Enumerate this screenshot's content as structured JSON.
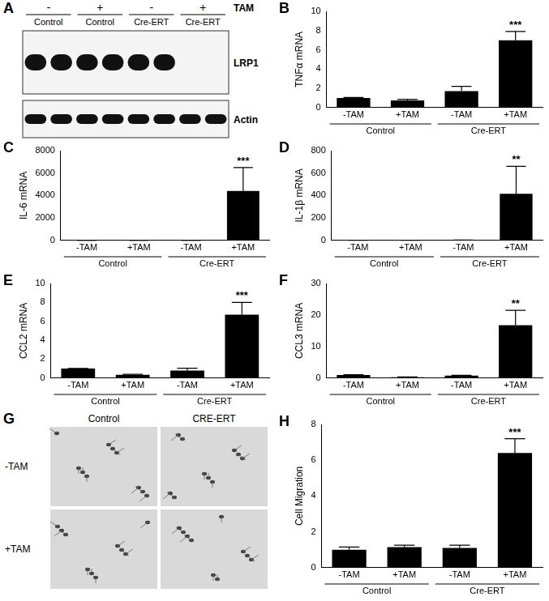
{
  "chart_data": [
    {
      "panel": "B",
      "type": "bar",
      "y_label": "TNFα mRNA",
      "categories": [
        "-TAM",
        "+TAM",
        "-TAM",
        "+TAM"
      ],
      "groups": [
        "Control",
        "Cre-ERT"
      ],
      "values": [
        1.0,
        0.75,
        1.7,
        7.0
      ],
      "errors": [
        0.05,
        0.1,
        0.5,
        0.9
      ],
      "significance": [
        null,
        null,
        null,
        "***"
      ],
      "color": "#000000",
      "ylim": [
        0,
        10
      ],
      "yticks": [
        0,
        2,
        4,
        6,
        8,
        10
      ],
      "grid": false
    },
    {
      "panel": "C",
      "type": "bar",
      "y_label": "IL-6 mRNA",
      "categories": [
        "-TAM",
        "+TAM",
        "-TAM",
        "+TAM"
      ],
      "groups": [
        "Control",
        "Cre-ERT"
      ],
      "values": [
        1,
        1,
        1,
        4400
      ],
      "errors": [
        0,
        0,
        0,
        2100
      ],
      "significance": [
        null,
        null,
        null,
        "***"
      ],
      "color": "#000000",
      "ylim": [
        0,
        8000
      ],
      "yticks": [
        0,
        2000,
        4000,
        6000,
        8000
      ],
      "grid": false
    },
    {
      "panel": "D",
      "type": "bar",
      "y_label": "IL-1β mRNA",
      "categories": [
        "-TAM",
        "+TAM",
        "-TAM",
        "+TAM"
      ],
      "groups": [
        "Control",
        "Cre-ERT"
      ],
      "values": [
        1,
        1,
        2,
        415
      ],
      "errors": [
        0,
        0,
        1,
        245
      ],
      "significance": [
        null,
        null,
        null,
        "**"
      ],
      "color": "#000000",
      "ylim": [
        0,
        800
      ],
      "yticks": [
        0,
        200,
        400,
        600,
        800
      ],
      "grid": false
    },
    {
      "panel": "E",
      "type": "bar",
      "y_label": "CCL2 mRNA",
      "categories": [
        "-TAM",
        "+TAM",
        "-TAM",
        "+TAM"
      ],
      "groups": [
        "Control",
        "Cre-ERT"
      ],
      "values": [
        1.0,
        0.35,
        0.8,
        6.7
      ],
      "errors": [
        0.02,
        0.05,
        0.25,
        1.3
      ],
      "significance": [
        null,
        null,
        null,
        "***"
      ],
      "color": "#000000",
      "ylim": [
        0,
        10
      ],
      "yticks": [
        0,
        2,
        4,
        6,
        8,
        10
      ],
      "grid": false
    },
    {
      "panel": "F",
      "type": "bar",
      "y_label": "CCL3 mRNA",
      "categories": [
        "-TAM",
        "+TAM",
        "-TAM",
        "+TAM"
      ],
      "groups": [
        "Control",
        "Cre-ERT"
      ],
      "values": [
        1.0,
        0.3,
        0.8,
        16.8
      ],
      "errors": [
        0.05,
        0.05,
        0.1,
        4.7
      ],
      "significance": [
        null,
        null,
        null,
        "**"
      ],
      "color": "#000000",
      "ylim": [
        0,
        30
      ],
      "yticks": [
        0,
        10,
        20,
        30
      ],
      "grid": false
    },
    {
      "panel": "H",
      "type": "bar",
      "y_label": "Cell Migration",
      "categories": [
        "-TAM",
        "+TAM",
        "-TAM",
        "+TAM"
      ],
      "groups": [
        "Control",
        "Cre-ERT"
      ],
      "values": [
        1.0,
        1.15,
        1.1,
        6.4
      ],
      "errors": [
        0.15,
        0.1,
        0.15,
        0.8
      ],
      "significance": [
        null,
        null,
        null,
        "***"
      ],
      "color": "#000000",
      "ylim": [
        0,
        8
      ],
      "yticks": [
        0,
        2,
        4,
        6,
        8
      ],
      "grid": false
    }
  ],
  "blot": {
    "panel": "A",
    "treatment": "TAM",
    "groups": [
      {
        "sign": "-",
        "label": "Control"
      },
      {
        "sign": "+",
        "label": "Control"
      },
      {
        "sign": "-",
        "label": "Cre-ERT"
      },
      {
        "sign": "+",
        "label": "Cre-ERT"
      }
    ],
    "bands": [
      {
        "name": "LRP1",
        "present": [
          [
            true,
            true
          ],
          [
            true,
            true
          ],
          [
            true,
            true
          ],
          [
            false,
            false
          ]
        ]
      },
      {
        "name": "Actin",
        "present": [
          [
            true,
            true
          ],
          [
            true,
            true
          ],
          [
            true,
            true
          ],
          [
            true,
            true
          ]
        ]
      }
    ]
  },
  "micrographs": {
    "panel": "G",
    "columns": [
      "Control",
      "CRE-ERT"
    ],
    "rows": [
      "-TAM",
      "+TAM"
    ]
  }
}
